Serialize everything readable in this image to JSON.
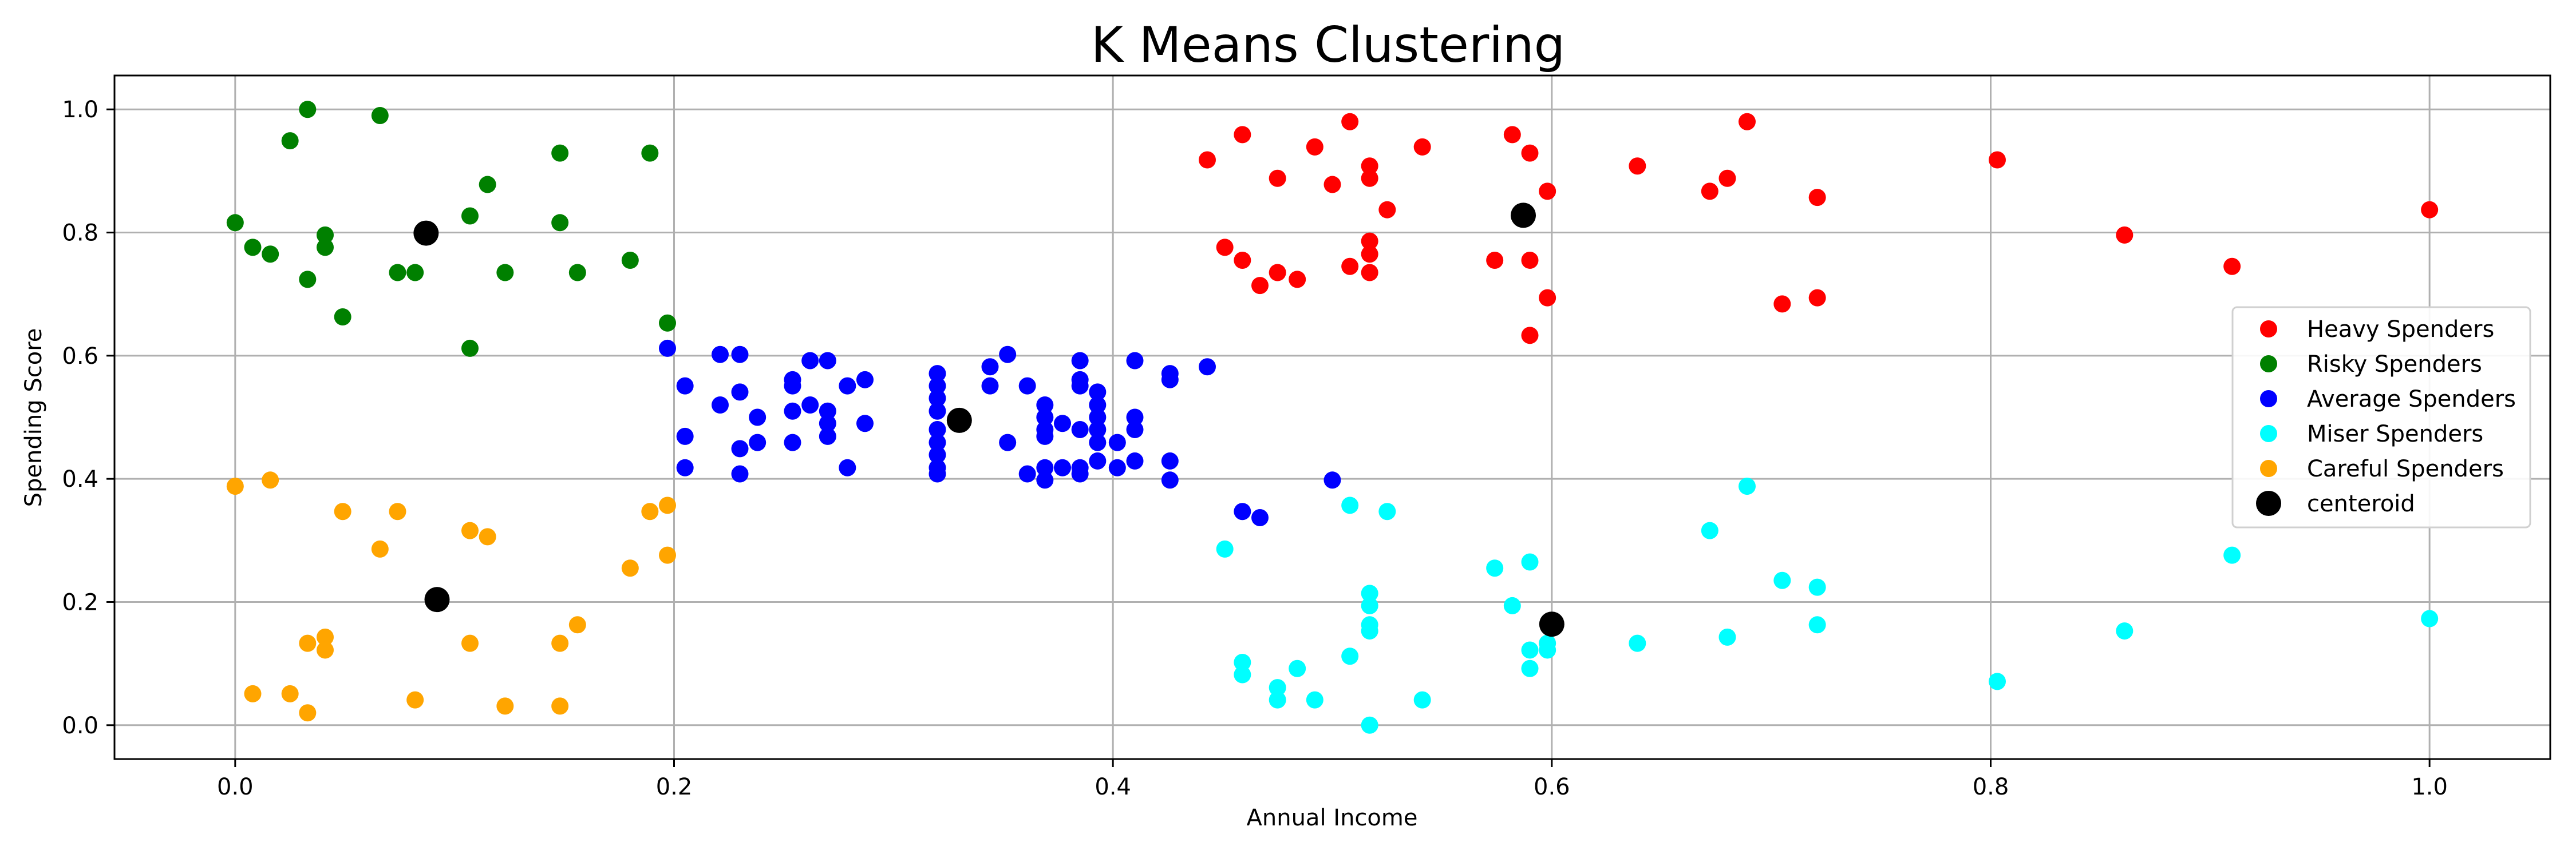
{
  "chart_data": {
    "type": "scatter",
    "title": "K Means Clustering",
    "xlabel": "Annual Income",
    "ylabel": "Spending Score",
    "xlim": [
      -0.055,
      1.055
    ],
    "ylim": [
      -0.055,
      1.055
    ],
    "xticks": [
      0.0,
      0.2,
      0.4,
      0.6,
      0.8,
      1.0
    ],
    "xtick_labels": [
      "0.0",
      "0.2",
      "0.4",
      "0.6",
      "0.8",
      "1.0"
    ],
    "yticks": [
      0.0,
      0.2,
      0.4,
      0.6,
      0.8,
      1.0
    ],
    "ytick_labels": [
      "0.0",
      "0.2",
      "0.4",
      "0.6",
      "0.8",
      "1.0"
    ],
    "grid": true,
    "legend_position": "center-right",
    "series": [
      {
        "name": "Heavy Spenders",
        "color": "#ff0000",
        "marker": "small-circle",
        "points": [
          [
            0.443,
            0.918
          ],
          [
            0.459,
            0.959
          ],
          [
            0.475,
            0.888
          ],
          [
            0.492,
            0.939
          ],
          [
            0.5,
            0.878
          ],
          [
            0.508,
            0.98
          ],
          [
            0.517,
            0.908
          ],
          [
            0.517,
            0.888
          ],
          [
            0.525,
            0.837
          ],
          [
            0.541,
            0.939
          ],
          [
            0.582,
            0.959
          ],
          [
            0.59,
            0.929
          ],
          [
            0.598,
            0.867
          ],
          [
            0.639,
            0.908
          ],
          [
            0.672,
            0.867
          ],
          [
            0.68,
            0.888
          ],
          [
            0.689,
            0.98
          ],
          [
            0.721,
            0.857
          ],
          [
            0.803,
            0.918
          ],
          [
            0.861,
            0.796
          ],
          [
            0.91,
            0.745
          ],
          [
            1.0,
            0.837
          ],
          [
            0.451,
            0.776
          ],
          [
            0.459,
            0.755
          ],
          [
            0.467,
            0.714
          ],
          [
            0.475,
            0.735
          ],
          [
            0.484,
            0.724
          ],
          [
            0.508,
            0.745
          ],
          [
            0.517,
            0.786
          ],
          [
            0.517,
            0.765
          ],
          [
            0.517,
            0.735
          ],
          [
            0.574,
            0.755
          ],
          [
            0.59,
            0.755
          ],
          [
            0.598,
            0.694
          ],
          [
            0.59,
            0.633
          ],
          [
            0.705,
            0.684
          ],
          [
            0.721,
            0.694
          ]
        ]
      },
      {
        "name": "Risky Spenders",
        "color": "#008000",
        "marker": "small-circle",
        "points": [
          [
            0.0,
            0.816
          ],
          [
            0.008,
            0.776
          ],
          [
            0.016,
            0.765
          ],
          [
            0.025,
            0.949
          ],
          [
            0.033,
            1.0
          ],
          [
            0.033,
            0.724
          ],
          [
            0.041,
            0.796
          ],
          [
            0.041,
            0.776
          ],
          [
            0.049,
            0.663
          ],
          [
            0.066,
            0.99
          ],
          [
            0.074,
            0.735
          ],
          [
            0.082,
            0.735
          ],
          [
            0.107,
            0.827
          ],
          [
            0.107,
            0.612
          ],
          [
            0.115,
            0.878
          ],
          [
            0.123,
            0.735
          ],
          [
            0.148,
            0.929
          ],
          [
            0.148,
            0.816
          ],
          [
            0.156,
            0.735
          ],
          [
            0.18,
            0.755
          ],
          [
            0.189,
            0.929
          ],
          [
            0.197,
            0.653
          ]
        ]
      },
      {
        "name": "Average Spenders",
        "color": "#0000ff",
        "marker": "small-circle",
        "points": [
          [
            0.197,
            0.612
          ],
          [
            0.205,
            0.551
          ],
          [
            0.205,
            0.469
          ],
          [
            0.205,
            0.418
          ],
          [
            0.221,
            0.602
          ],
          [
            0.221,
            0.52
          ],
          [
            0.23,
            0.602
          ],
          [
            0.23,
            0.541
          ],
          [
            0.23,
            0.449
          ],
          [
            0.23,
            0.408
          ],
          [
            0.238,
            0.5
          ],
          [
            0.238,
            0.459
          ],
          [
            0.254,
            0.561
          ],
          [
            0.254,
            0.551
          ],
          [
            0.254,
            0.51
          ],
          [
            0.254,
            0.459
          ],
          [
            0.262,
            0.592
          ],
          [
            0.262,
            0.52
          ],
          [
            0.27,
            0.592
          ],
          [
            0.27,
            0.51
          ],
          [
            0.27,
            0.49
          ],
          [
            0.27,
            0.469
          ],
          [
            0.279,
            0.551
          ],
          [
            0.279,
            0.418
          ],
          [
            0.287,
            0.561
          ],
          [
            0.287,
            0.49
          ],
          [
            0.32,
            0.571
          ],
          [
            0.32,
            0.551
          ],
          [
            0.32,
            0.531
          ],
          [
            0.32,
            0.51
          ],
          [
            0.32,
            0.48
          ],
          [
            0.32,
            0.459
          ],
          [
            0.32,
            0.439
          ],
          [
            0.32,
            0.418
          ],
          [
            0.32,
            0.408
          ],
          [
            0.344,
            0.582
          ],
          [
            0.344,
            0.551
          ],
          [
            0.352,
            0.602
          ],
          [
            0.352,
            0.459
          ],
          [
            0.361,
            0.551
          ],
          [
            0.361,
            0.408
          ],
          [
            0.369,
            0.52
          ],
          [
            0.369,
            0.5
          ],
          [
            0.369,
            0.48
          ],
          [
            0.369,
            0.469
          ],
          [
            0.369,
            0.418
          ],
          [
            0.369,
            0.398
          ],
          [
            0.377,
            0.49
          ],
          [
            0.377,
            0.418
          ],
          [
            0.385,
            0.592
          ],
          [
            0.385,
            0.561
          ],
          [
            0.385,
            0.551
          ],
          [
            0.385,
            0.48
          ],
          [
            0.385,
            0.418
          ],
          [
            0.385,
            0.408
          ],
          [
            0.393,
            0.541
          ],
          [
            0.393,
            0.52
          ],
          [
            0.393,
            0.5
          ],
          [
            0.393,
            0.48
          ],
          [
            0.393,
            0.459
          ],
          [
            0.393,
            0.429
          ],
          [
            0.402,
            0.459
          ],
          [
            0.402,
            0.418
          ],
          [
            0.41,
            0.592
          ],
          [
            0.41,
            0.5
          ],
          [
            0.41,
            0.48
          ],
          [
            0.41,
            0.429
          ],
          [
            0.426,
            0.571
          ],
          [
            0.426,
            0.561
          ],
          [
            0.426,
            0.429
          ],
          [
            0.426,
            0.398
          ],
          [
            0.443,
            0.582
          ],
          [
            0.459,
            0.347
          ],
          [
            0.467,
            0.337
          ],
          [
            0.5,
            0.398
          ]
        ]
      },
      {
        "name": "Miser Spenders",
        "color": "#00ffff",
        "marker": "small-circle",
        "points": [
          [
            0.451,
            0.286
          ],
          [
            0.459,
            0.102
          ],
          [
            0.459,
            0.082
          ],
          [
            0.475,
            0.061
          ],
          [
            0.475,
            0.041
          ],
          [
            0.484,
            0.092
          ],
          [
            0.492,
            0.041
          ],
          [
            0.508,
            0.357
          ],
          [
            0.508,
            0.112
          ],
          [
            0.517,
            0.214
          ],
          [
            0.517,
            0.194
          ],
          [
            0.517,
            0.163
          ],
          [
            0.517,
            0.153
          ],
          [
            0.517,
            0.0
          ],
          [
            0.525,
            0.347
          ],
          [
            0.541,
            0.041
          ],
          [
            0.574,
            0.255
          ],
          [
            0.582,
            0.194
          ],
          [
            0.59,
            0.265
          ],
          [
            0.59,
            0.122
          ],
          [
            0.59,
            0.092
          ],
          [
            0.598,
            0.133
          ],
          [
            0.598,
            0.122
          ],
          [
            0.639,
            0.133
          ],
          [
            0.672,
            0.316
          ],
          [
            0.68,
            0.143
          ],
          [
            0.689,
            0.388
          ],
          [
            0.705,
            0.235
          ],
          [
            0.721,
            0.224
          ],
          [
            0.721,
            0.163
          ],
          [
            0.803,
            0.071
          ],
          [
            0.861,
            0.153
          ],
          [
            0.91,
            0.276
          ],
          [
            1.0,
            0.173
          ]
        ]
      },
      {
        "name": "Careful Spenders",
        "color": "#ffa500",
        "marker": "small-circle",
        "points": [
          [
            0.0,
            0.388
          ],
          [
            0.008,
            0.051
          ],
          [
            0.016,
            0.398
          ],
          [
            0.025,
            0.051
          ],
          [
            0.033,
            0.133
          ],
          [
            0.033,
            0.02
          ],
          [
            0.041,
            0.143
          ],
          [
            0.041,
            0.122
          ],
          [
            0.049,
            0.347
          ],
          [
            0.066,
            0.286
          ],
          [
            0.074,
            0.347
          ],
          [
            0.082,
            0.041
          ],
          [
            0.107,
            0.316
          ],
          [
            0.107,
            0.133
          ],
          [
            0.115,
            0.306
          ],
          [
            0.123,
            0.031
          ],
          [
            0.148,
            0.133
          ],
          [
            0.148,
            0.031
          ],
          [
            0.156,
            0.163
          ],
          [
            0.18,
            0.255
          ],
          [
            0.189,
            0.347
          ],
          [
            0.197,
            0.357
          ],
          [
            0.197,
            0.276
          ]
        ]
      },
      {
        "name": "centeroid",
        "color": "#000000",
        "marker": "large-circle",
        "points": [
          [
            0.587,
            0.828
          ],
          [
            0.087,
            0.799
          ],
          [
            0.33,
            0.495
          ],
          [
            0.6,
            0.164
          ],
          [
            0.092,
            0.204
          ]
        ]
      }
    ]
  }
}
